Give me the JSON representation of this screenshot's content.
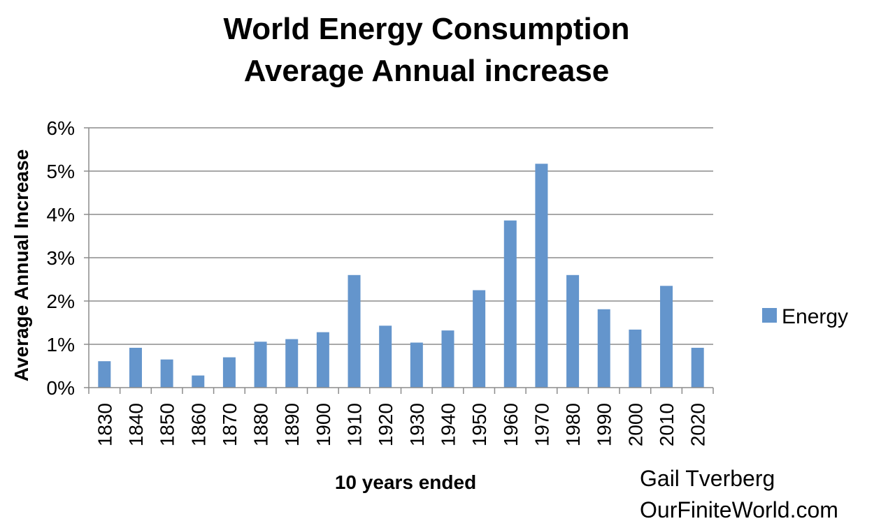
{
  "chart_data": {
    "type": "bar",
    "title": "World Energy Consumption",
    "subtitle": "Average Annual increase",
    "xlabel": "10 years ended",
    "ylabel": "Average Annual Increase",
    "ylim": [
      0,
      0.06
    ],
    "yticks": [
      "0%",
      "1%",
      "2%",
      "3%",
      "4%",
      "5%",
      "6%"
    ],
    "categories": [
      "1830",
      "1840",
      "1850",
      "1860",
      "1870",
      "1880",
      "1890",
      "1900",
      "1910",
      "1920",
      "1930",
      "1940",
      "1950",
      "1960",
      "1970",
      "1980",
      "1990",
      "2000",
      "2010",
      "2020"
    ],
    "series": [
      {
        "name": "Energy",
        "color": "#6495CC",
        "values": [
          0.0061,
          0.0092,
          0.0065,
          0.0028,
          0.007,
          0.0106,
          0.0112,
          0.0128,
          0.026,
          0.0143,
          0.0104,
          0.0132,
          0.0225,
          0.0386,
          0.0517,
          0.026,
          0.0181,
          0.0134,
          0.0235,
          0.0092
        ]
      }
    ],
    "grid": true,
    "legend_position": "right"
  },
  "credit": {
    "line1": "Gail Tverberg",
    "line2": "OurFiniteWorld.com"
  }
}
